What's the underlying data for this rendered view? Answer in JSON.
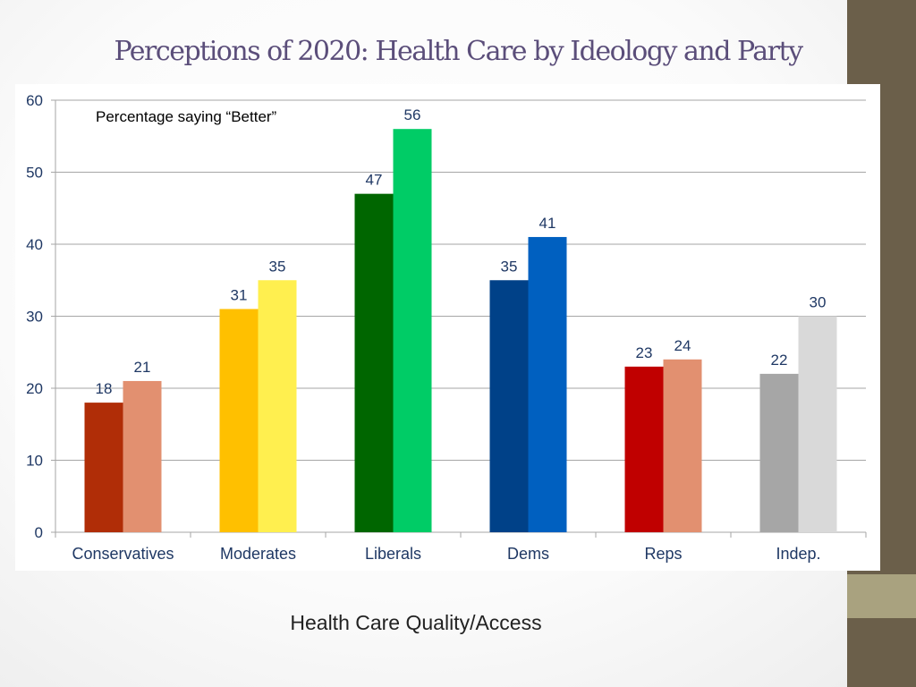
{
  "slide": {
    "title": "Perceptions of 2020: Health Care by Ideology and Party",
    "caption": "Health Care Quality/Access"
  },
  "colors": {
    "side_bar": "#6b5f4a",
    "side_accent": "#a9a27f",
    "title": "#5b4e7a",
    "axis_text": "#1f3864",
    "grid": "#a6a6a6"
  },
  "chart_data": {
    "type": "bar",
    "title": "",
    "annotation": "Percentage saying “Better”",
    "categories": [
      "Conservatives",
      "Moderates",
      "Liberals",
      "Dems",
      "Reps",
      "Indep."
    ],
    "values_left": [
      18,
      31,
      47,
      35,
      23,
      22
    ],
    "values_right": [
      21,
      35,
      56,
      41,
      24,
      30
    ],
    "colors_left": [
      "#b02d07",
      "#ffc000",
      "#006600",
      "#004188",
      "#c00000",
      "#a6a6a6"
    ],
    "colors_right": [
      "#e29070",
      "#ffef4f",
      "#00cc66",
      "#0060c0",
      "#e29070",
      "#d9d9d9"
    ],
    "ylim": [
      0,
      60
    ],
    "yticks": [
      0,
      10,
      20,
      30,
      40,
      50,
      60
    ],
    "xlabel": "",
    "ylabel": "",
    "grid": true,
    "legend": "none"
  }
}
